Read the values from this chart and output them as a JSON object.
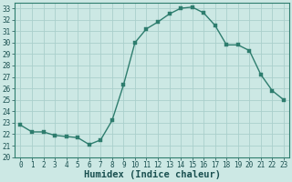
{
  "x": [
    0,
    1,
    2,
    3,
    4,
    5,
    6,
    7,
    8,
    9,
    10,
    11,
    12,
    13,
    14,
    15,
    16,
    17,
    18,
    19,
    20,
    21,
    22,
    23
  ],
  "y": [
    22.8,
    22.2,
    22.2,
    21.9,
    21.8,
    21.7,
    21.1,
    21.5,
    23.2,
    26.3,
    30.0,
    31.2,
    31.8,
    32.5,
    33.0,
    33.1,
    32.6,
    31.5,
    29.8,
    29.8,
    29.3,
    27.2,
    25.8,
    25.0
  ],
  "line_color": "#2e7d6e",
  "bg_color": "#cce8e4",
  "grid_color": "#aacfcc",
  "xlabel": "Humidex (Indice chaleur)",
  "ylim": [
    20,
    33.5
  ],
  "xlim": [
    -0.5,
    23.5
  ],
  "yticks": [
    20,
    21,
    22,
    23,
    24,
    25,
    26,
    27,
    28,
    29,
    30,
    31,
    32,
    33
  ],
  "xticks": [
    0,
    1,
    2,
    3,
    4,
    5,
    6,
    7,
    8,
    9,
    10,
    11,
    12,
    13,
    14,
    15,
    16,
    17,
    18,
    19,
    20,
    21,
    22,
    23
  ],
  "title_color": "#1a5050",
  "axis_color": "#2e7d6e",
  "tick_fontsize": 5.5,
  "xlabel_fontsize": 7.5,
  "marker_size": 2.5,
  "linewidth": 1.0
}
